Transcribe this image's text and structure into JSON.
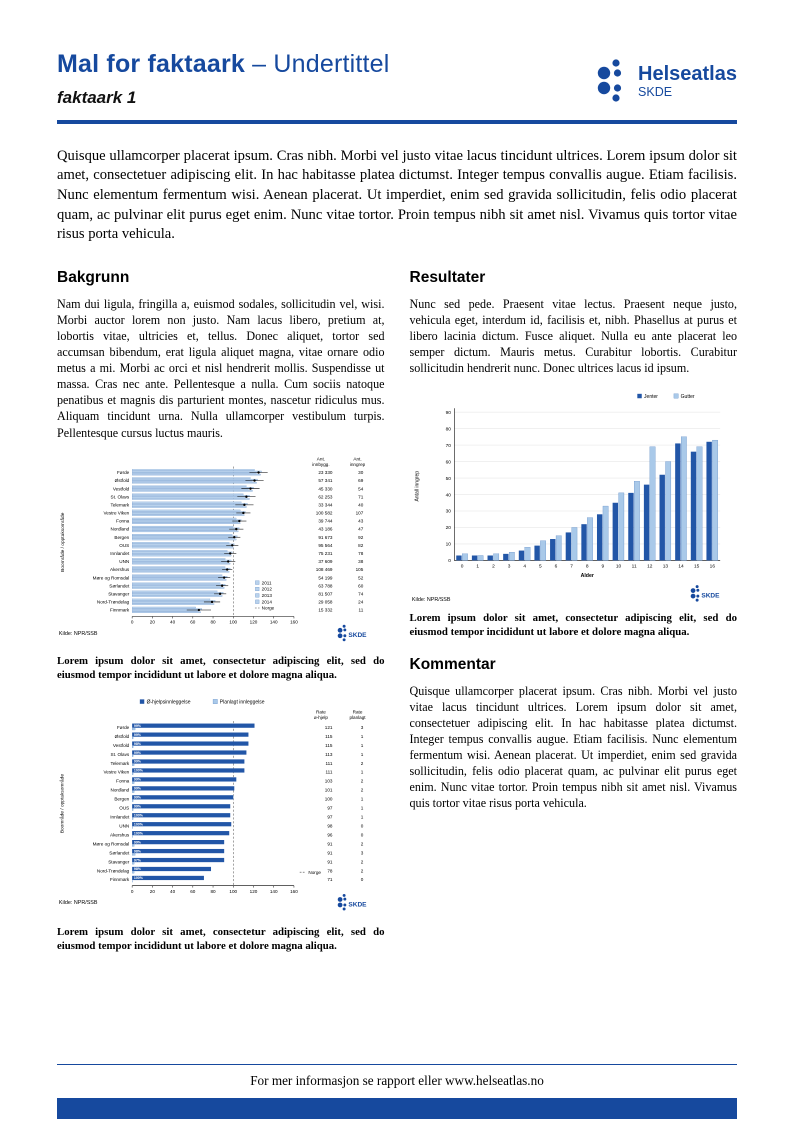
{
  "colors": {
    "primary": "#16499e",
    "dark_bar": "#2256a7",
    "light_bar": "#b9d2ec",
    "light_bar2": "#a9c9e9",
    "bar_stroke": "#4f7fbf",
    "grid": "#dcdcdc"
  },
  "header": {
    "title_bold": "Mal for faktaark",
    "title_light": " – Undertittel",
    "subtitle": "faktaark 1",
    "logo_name": "Helseatlas",
    "logo_org": "SKDE"
  },
  "intro": "Quisque ullamcorper placerat ipsum. Cras nibh. Morbi vel justo vitae lacus tincidunt ultrices. Lorem ipsum dolor sit amet, consectetuer adipiscing elit. In hac habitasse platea dictumst. Integer tempus convallis augue. Etiam facilisis. Nunc elementum fermentum wisi. Aenean placerat. Ut imperdiet, enim sed gravida sollicitudin, felis odio placerat quam, ac pulvinar elit purus eget enim. Nunc vitae tortor. Proin tempus nibh sit amet nisl. Vivamus quis tortor vitae risus porta vehicula.",
  "sections": {
    "bakgrunn": {
      "heading": "Bakgrunn",
      "body": "Nam dui ligula, fringilla a, euismod sodales, sollicitudin vel, wisi. Morbi auctor lorem non justo. Nam lacus libero, pretium at, lobortis vitae, ultricies et, tellus. Donec aliquet, tortor sed accumsan bibendum, erat ligula aliquet magna, vitae ornare odio metus a mi. Morbi ac orci et nisl hendrerit mollis. Suspendisse ut massa. Cras nec ante. Pellentesque a nulla. Cum sociis natoque penatibus et magnis dis parturient montes, nascetur ridiculus mus. Aliquam tincidunt urna. Nulla ullamcorper vestibulum turpis. Pellentesque cursus luctus mauris."
    },
    "resultater": {
      "heading": "Resultater",
      "body": "Nunc sed pede. Praesent vitae lectus. Praesent neque justo, vehicula eget, interdum id, facilisis et, nibh. Phasellus at purus et libero lacinia dictum. Fusce aliquet. Nulla eu ante placerat leo semper dictum. Mauris metus. Curabitur lobortis. Curabitur sollicitudin hendrerit nunc. Donec ultrices lacus id ipsum."
    },
    "kommentar": {
      "heading": "Kommentar",
      "body": "Quisque ullamcorper placerat ipsum. Cras nibh. Morbi vel justo vitae lacus tincidunt ultrices. Lorem ipsum dolor sit amet, consectetuer adipiscing elit. In hac habitasse platea dictumst. Integer tempus convallis augue. Etiam facilisis. Nunc elementum fermentum wisi. Aenean placerat. Ut imperdiet, enim sed gravida sollicitudin, felis odio placerat quam, ac pulvinar elit purus eget enim. Nunc vitae tortor. Proin tempus nibh sit amet nisl. Vivamus quis tortor vitae risus porta vehicula."
    }
  },
  "caption": "Lorem ipsum dolor sit amet, consectetur adipiscing elit, sed do eiusmod tempor incididunt ut labore et dolore magna aliqua.",
  "footer": {
    "prefix": "For mer informasjon se rapport eller ",
    "url": "www.helseatlas.no"
  },
  "chart_data": [
    {
      "id": "rate-per-area",
      "type": "bar",
      "orientation": "horizontal",
      "title": "",
      "ylabel": "Boområde / opptaksområde",
      "xlim": [
        0,
        160
      ],
      "xticks": [
        0,
        20,
        40,
        60,
        80,
        100,
        120,
        140,
        160
      ],
      "norge_label": "Norge",
      "norge_value": 100,
      "source": "Kilde: NPR/SSB",
      "table_headers": [
        [
          "Ant.",
          "innbygg."
        ],
        [
          "Ant.",
          "inngrep"
        ]
      ],
      "categories": [
        "Førde",
        "Østfold",
        "Vestfold",
        "St. Olavs",
        "Telemark",
        "Vestre Viken",
        "Fonna",
        "Nordland",
        "Bergen",
        "OUS",
        "Innlandet",
        "UNN",
        "Akershus",
        "Møre og Romsdal",
        "Sørlandet",
        "Stavanger",
        "Nord-Trøndelag",
        "Finnmark"
      ],
      "series": [
        {
          "name": "2011",
          "values": [
            121,
            117,
            113,
            110,
            108,
            107,
            103,
            100,
            99,
            96,
            94,
            92,
            92,
            89,
            87,
            84,
            77,
            63
          ]
        },
        {
          "name": "2012",
          "values": [
            128,
            124,
            120,
            116,
            114,
            112,
            108,
            106,
            104,
            101,
            99,
            98,
            97,
            94,
            92,
            90,
            82,
            69
          ]
        },
        {
          "name": "2013",
          "values": [
            123,
            119,
            115,
            112,
            110,
            109,
            105,
            102,
            100,
            98,
            96,
            94,
            93,
            90,
            88,
            86,
            78,
            65
          ]
        },
        {
          "name": "2014",
          "values": [
            127,
            123,
            119,
            116,
            113,
            111,
            107,
            105,
            103,
            100,
            98,
            97,
            96,
            93,
            91,
            89,
            81,
            68
          ]
        }
      ],
      "mean": [
        125,
        121,
        117,
        113,
        111,
        110,
        106,
        103,
        101,
        99,
        97,
        95,
        94,
        91,
        89,
        87,
        79,
        66
      ],
      "ci_low": [
        116,
        112,
        108,
        104,
        102,
        103,
        99,
        96,
        95,
        93,
        91,
        88,
        89,
        85,
        83,
        81,
        71,
        54
      ],
      "ci_high": [
        134,
        130,
        126,
        122,
        120,
        117,
        113,
        110,
        107,
        105,
        103,
        102,
        99,
        97,
        95,
        93,
        87,
        78
      ],
      "ant_innbygg": [
        "23 330",
        "57 341",
        "45 330",
        "62 253",
        "33 344",
        "100 582",
        "39 744",
        "43 186",
        "91 673",
        "95 564",
        "75 231",
        "37 609",
        "108 469",
        "54 199",
        "63 788",
        "81 507",
        "29 058",
        "15 332"
      ],
      "ant_inngrep": [
        30,
        69,
        54,
        71,
        40,
        107,
        43,
        47,
        92,
        82,
        78,
        38,
        105,
        52,
        60,
        74,
        24,
        11
      ]
    },
    {
      "id": "acute-vs-planned",
      "type": "bar",
      "orientation": "horizontal",
      "title": "",
      "ylabel": "Boområde / opptaksområde",
      "xlim": [
        0,
        160
      ],
      "xticks": [
        0,
        20,
        40,
        60,
        80,
        100,
        120,
        140,
        160
      ],
      "legend": [
        "Ø-hjelpsinnleggelse",
        "Planlagt innleggelse"
      ],
      "norge_label": "Norge",
      "norge_value": 100,
      "source": "Kilde: NPR/SSB",
      "table_headers": [
        [
          "Rate",
          "ø-hjelp"
        ],
        [
          "Rate",
          "planlagt"
        ]
      ],
      "categories": [
        "Førde",
        "Østfold",
        "Vestfold",
        "St. Olavs",
        "Telemark",
        "Vestre Viken",
        "Fonna",
        "Nordland",
        "Bergen",
        "OUS",
        "Innlandet",
        "UNN",
        "Akershus",
        "Møre og Romsdal",
        "Sørlandet",
        "Stavanger",
        "Nord-Trøndelag",
        "Finnmark"
      ],
      "pct_labels": [
        "99%",
        "99%",
        "98%",
        "99%",
        "99%",
        "100%",
        "99%",
        "99%",
        "99%",
        "99%",
        "100%",
        "100%",
        "100%",
        "99%",
        "98%",
        "97%",
        "98%",
        "100%"
      ],
      "rate_ohjelp": [
        121,
        115,
        115,
        113,
        111,
        111,
        103,
        101,
        100,
        97,
        97,
        98,
        96,
        91,
        91,
        91,
        78,
        71
      ],
      "rate_planlagt": [
        3,
        1,
        1,
        1,
        2,
        1,
        2,
        2,
        1,
        1,
        1,
        0,
        0,
        2,
        3,
        2,
        2,
        0
      ]
    },
    {
      "id": "age-gender",
      "type": "bar",
      "orientation": "vertical",
      "title": "",
      "xlabel": "Alder",
      "ylabel": "Antall inngrep",
      "ylim": [
        0,
        90
      ],
      "yticks": [
        0,
        10,
        20,
        30,
        40,
        50,
        60,
        70,
        80,
        90
      ],
      "source": "Kilde: NPR/SSB",
      "categories": [
        "0",
        "1",
        "2",
        "3",
        "4",
        "5",
        "6",
        "7",
        "8",
        "9",
        "10",
        "11",
        "12",
        "13",
        "14",
        "15",
        "16"
      ],
      "series": [
        {
          "name": "Jenter",
          "values": [
            3,
            3,
            3,
            4,
            6,
            9,
            13,
            17,
            22,
            28,
            35,
            41,
            46,
            52,
            71,
            66,
            72
          ]
        },
        {
          "name": "Gutter",
          "values": [
            4,
            3,
            4,
            5,
            8,
            12,
            15,
            20,
            26,
            33,
            41,
            48,
            69,
            60,
            75,
            69,
            73
          ]
        }
      ]
    }
  ]
}
